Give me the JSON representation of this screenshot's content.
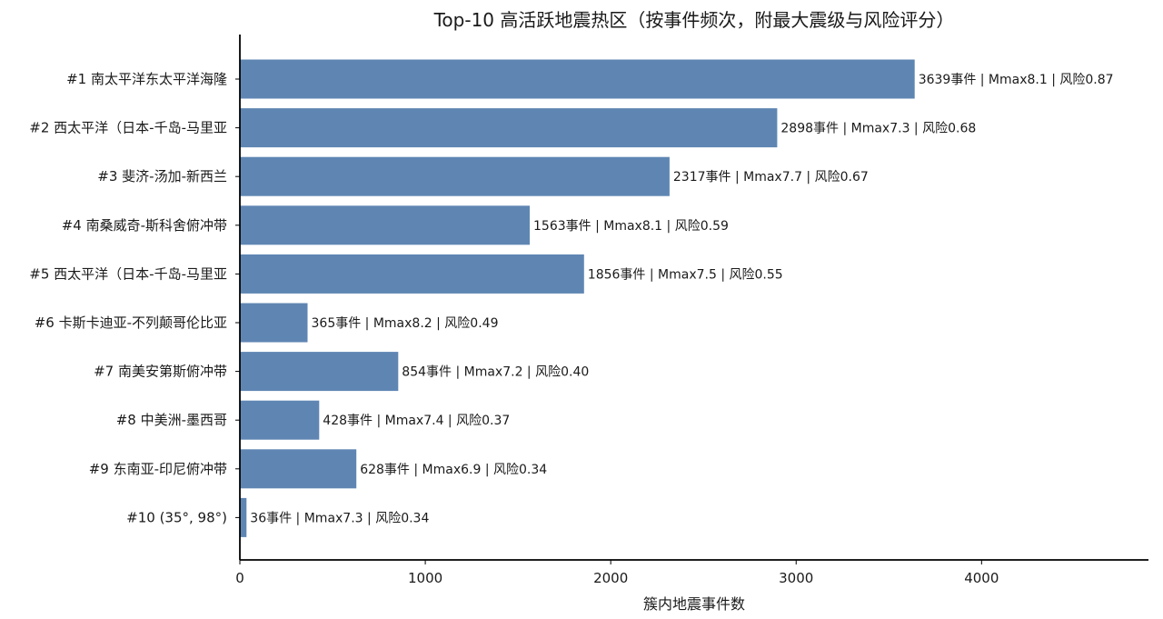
{
  "chart_data": {
    "type": "bar",
    "orientation": "horizontal",
    "title": "Top-10 高活跃地震热区（按事件频次，附最大震级与风险评分）",
    "xlabel": "簇内地震事件数",
    "ylabel": "",
    "xlim": [
      0,
      4900
    ],
    "xticks": [
      0,
      1000,
      2000,
      3000,
      4000
    ],
    "grid": false,
    "bar_color": "#5f86b3",
    "categories": [
      "#1 南太平洋东太平洋海隆",
      "#2 西太平洋（日本-千岛-马里亚",
      "#3 斐济-汤加-新西兰",
      "#4 南桑威奇-斯科舍俯冲带",
      "#5 西太平洋（日本-千岛-马里亚",
      "#6 卡斯卡迪亚-不列颠哥伦比亚",
      "#7 南美安第斯俯冲带",
      "#8 中美洲-墨西哥",
      "#9 东南亚-印尼俯冲带",
      "#10 (35°, 98°)"
    ],
    "values": [
      3639,
      2898,
      2317,
      1563,
      1856,
      365,
      854,
      428,
      628,
      36
    ],
    "data_labels": [
      "3639事件 | Mmax8.1 | 风险0.87",
      "2898事件 | Mmax7.3 | 风险0.68",
      "2317事件 | Mmax7.7 | 风险0.67",
      "1563事件 | Mmax8.1 | 风险0.59",
      "1856事件 | Mmax7.5 | 风险0.55",
      "365事件 | Mmax8.2 | 风险0.49",
      "854事件 | Mmax7.2 | 风险0.40",
      "428事件 | Mmax7.4 | 风险0.37",
      "628事件 | Mmax6.9 | 风险0.34",
      "36事件 | Mmax7.3 | 风险0.34"
    ]
  }
}
